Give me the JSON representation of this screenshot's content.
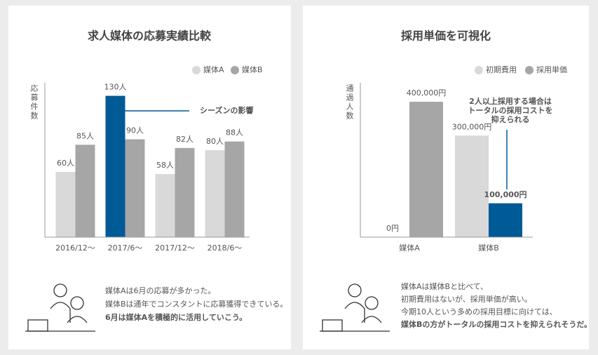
{
  "chart_data": [
    {
      "type": "bar",
      "title": "求人媒体の応募実績比較",
      "y_label": "応募件数",
      "categories": [
        "2016/12〜",
        "2017/6〜",
        "2017/12〜",
        "2018/6〜"
      ],
      "series": [
        {
          "name": "媒体A",
          "color": "#d9d9d9",
          "values": [
            60,
            130,
            58,
            80
          ],
          "value_labels": [
            "60人",
            "130人",
            "58人",
            "80人"
          ]
        },
        {
          "name": "媒体B",
          "color": "#a6a6a6",
          "values": [
            85,
            90,
            82,
            88
          ],
          "value_labels": [
            "85人",
            "90人",
            "82人",
            "88人"
          ]
        }
      ],
      "ylim": [
        0,
        142
      ],
      "highlight": {
        "series": 0,
        "index": 1,
        "color": "#005a96"
      },
      "annotation": "シーズンの影響",
      "caption": [
        "媒体Aは6月の応募が多かった。",
        "媒体Bは通年でコンスタントに応募獲得できている。",
        "6月は媒体Aを積極的に活用していこう。"
      ]
    },
    {
      "type": "bar",
      "title": "採用単価を可視化",
      "y_label": "通過人数",
      "categories": [
        "媒体A",
        "媒体B"
      ],
      "series": [
        {
          "name": "初期費用",
          "color": "#d9d9d9",
          "values": [
            0,
            300000
          ],
          "value_labels": [
            "0円",
            "300,000円"
          ]
        },
        {
          "name": "採用単価",
          "color": "#a6a6a6",
          "values": [
            400000,
            100000
          ],
          "value_labels": [
            "400,000円",
            "100,000円"
          ]
        }
      ],
      "ylim": [
        0,
        456000
      ],
      "highlight": {
        "series": 1,
        "index": 1,
        "color": "#005a96"
      },
      "annotation": [
        "2人以上採用する場合は",
        "トータルの採用コストを",
        "抑えられる"
      ],
      "caption": [
        "媒体Aは媒体Bと比べて、",
        "初期費用はないが、採用単価が高い。",
        "今期10人という多めの採用目標に向けては、",
        "媒体Bの方がトータルの採用コストを抑えられそうだ。"
      ]
    }
  ]
}
